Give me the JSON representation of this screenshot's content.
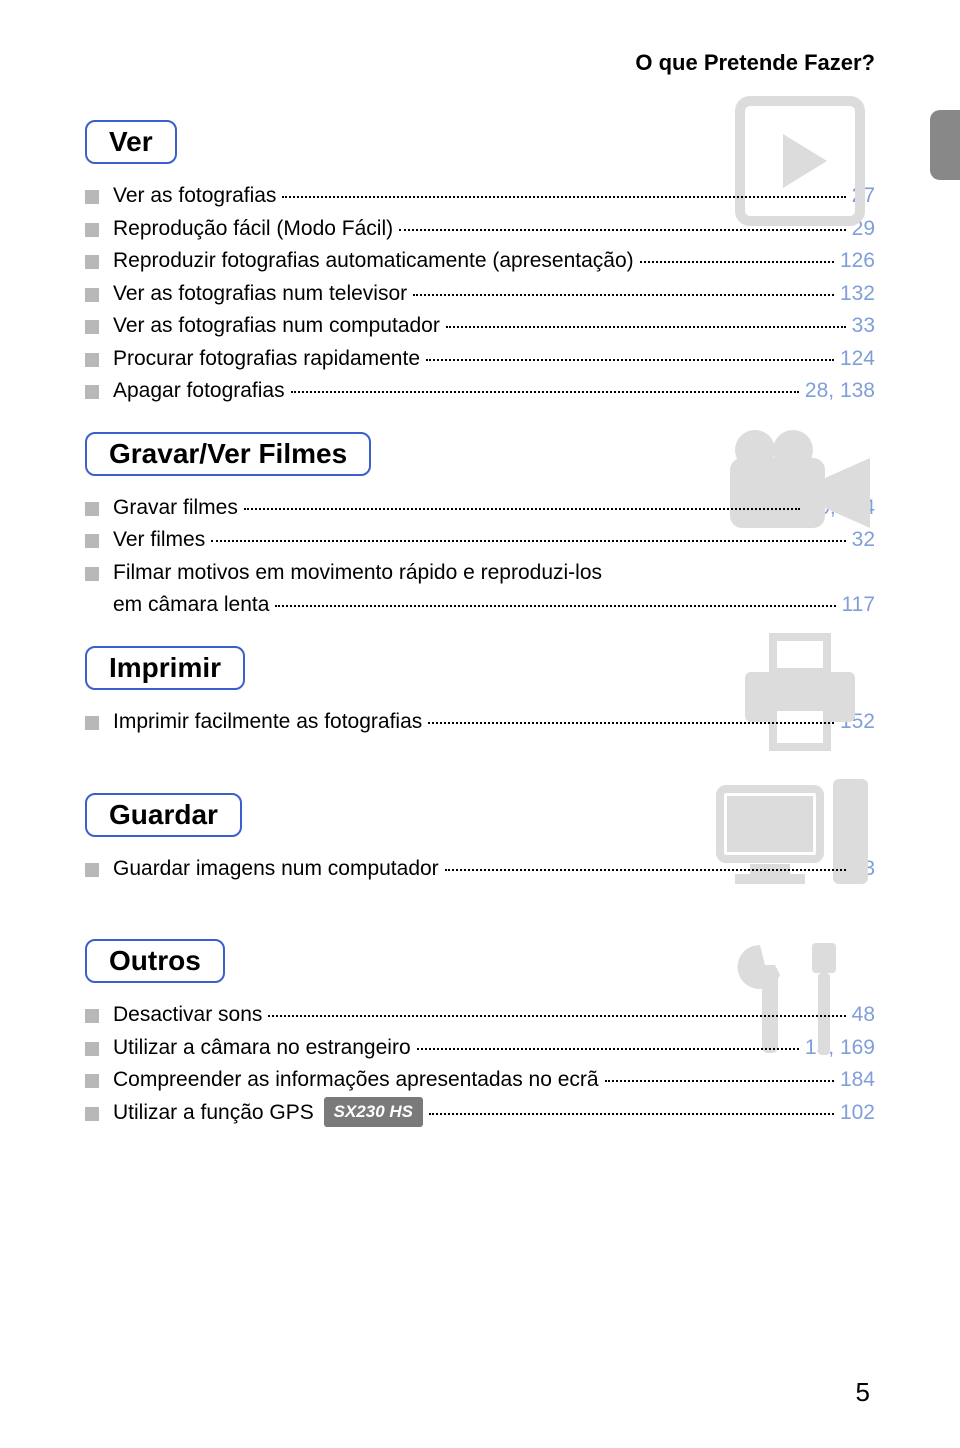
{
  "header": "O que Pretende Fazer?",
  "page_number": "5",
  "badge_text": "SX230 HS",
  "colors": {
    "border": "#3b5fcc",
    "page_link": "#809ed9",
    "bullet": "#b8b8b8",
    "bg_icon": "#dcdcdc"
  },
  "sections": [
    {
      "title": "Ver",
      "icon": "play",
      "items": [
        {
          "text": "Ver as fotografias",
          "page": "27"
        },
        {
          "text": "Reprodução fácil (Modo Fácil)",
          "page": "29"
        },
        {
          "text": "Reproduzir fotografias automaticamente (apresentação)",
          "page": "126"
        },
        {
          "text": "Ver as fotografias num televisor",
          "page": "132"
        },
        {
          "text": "Ver as fotografias num computador",
          "page": "33"
        },
        {
          "text": "Procurar fotografias rapidamente",
          "page": "124"
        },
        {
          "text": "Apagar fotografias",
          "page": "28, 138"
        }
      ]
    },
    {
      "title": "Gravar/Ver Filmes",
      "icon": "camcorder",
      "items": [
        {
          "text": "Gravar filmes",
          "page": "30, 114"
        },
        {
          "text": "Ver filmes",
          "page": "32"
        },
        {
          "text": "Filmar motivos em movimento rápido e reproduzi-los",
          "sub": "em câmara lenta",
          "page": "117"
        }
      ]
    },
    {
      "title": "Imprimir",
      "icon": "printer",
      "items": [
        {
          "text": "Imprimir facilmente as fotografias",
          "page": "152"
        }
      ]
    },
    {
      "title": "Guardar",
      "icon": "computer",
      "items": [
        {
          "text": "Guardar imagens num computador",
          "page": "33"
        }
      ]
    },
    {
      "title": "Outros",
      "icon": "tools",
      "items": [
        {
          "text": "Desactivar sons",
          "page": "48"
        },
        {
          "text": "Utilizar a câmara no estrangeiro",
          "page": "15, 169"
        },
        {
          "text": "Compreender as informações apresentadas no ecrã",
          "page": "184"
        },
        {
          "text": "Utilizar a função GPS",
          "badge": true,
          "page": "102"
        }
      ]
    }
  ]
}
